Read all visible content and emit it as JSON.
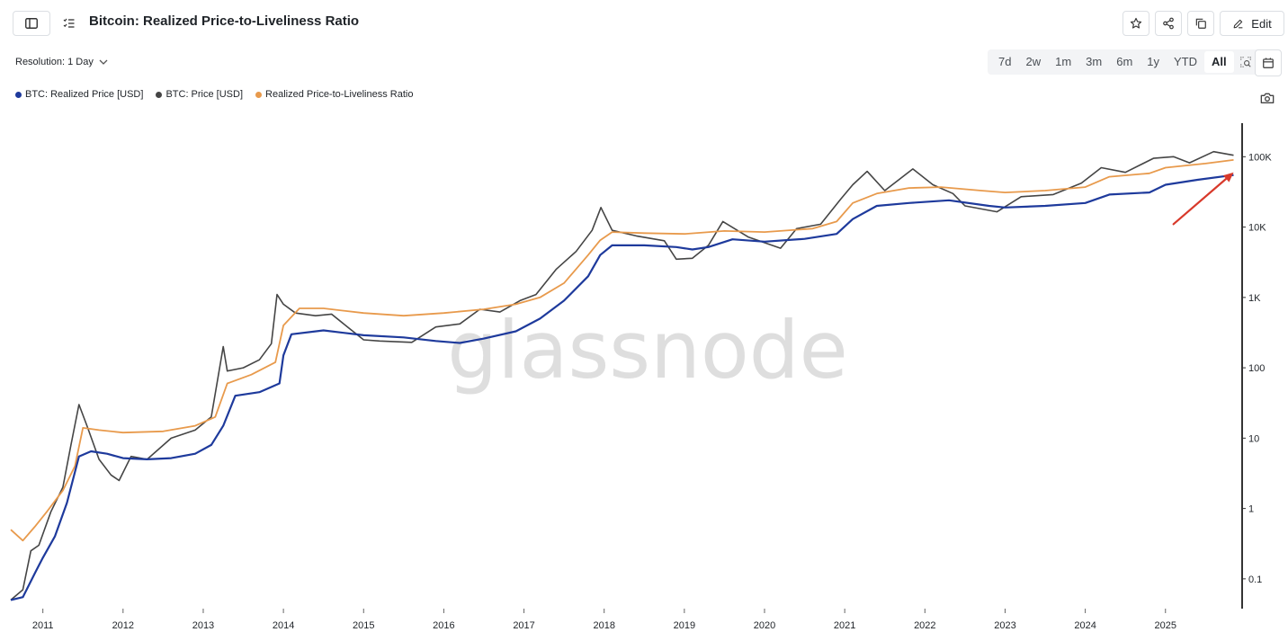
{
  "header": {
    "title": "Bitcoin: Realized Price-to-Liveliness Ratio",
    "edit_label": "Edit"
  },
  "toolbar": {
    "resolution_label": "Resolution: 1 Day",
    "ranges": [
      "7d",
      "2w",
      "1m",
      "3m",
      "6m",
      "1y",
      "YTD",
      "All"
    ],
    "active_range": "All"
  },
  "watermark": "glassnode",
  "colors": {
    "realized": "#1e3a9c",
    "price": "#454545",
    "ratio": "#e89a4c",
    "arrow": "#d8392b"
  },
  "chart_data": {
    "type": "line",
    "yscale": "log",
    "ylim": [
      0.04,
      300000
    ],
    "xlim": [
      2010.6,
      2025.9
    ],
    "x_ticks": [
      "2011",
      "2012",
      "2013",
      "2014",
      "2015",
      "2016",
      "2017",
      "2018",
      "2019",
      "2020",
      "2021",
      "2022",
      "2023",
      "2024",
      "2025"
    ],
    "y_ticks": [
      {
        "label": "100K",
        "value": 100000
      },
      {
        "label": "10K",
        "value": 10000
      },
      {
        "label": "1K",
        "value": 1000
      },
      {
        "label": "100",
        "value": 100
      },
      {
        "label": "10",
        "value": 10
      },
      {
        "label": "1",
        "value": 1
      },
      {
        "label": "0.1",
        "value": 0.1
      }
    ],
    "legend_position": "top-left",
    "series": [
      {
        "name": "BTC: Realized Price [USD]",
        "color": "#1e3a9c",
        "points": [
          [
            2010.6,
            0.05
          ],
          [
            2010.75,
            0.055
          ],
          [
            2010.9,
            0.12
          ],
          [
            2011.0,
            0.2
          ],
          [
            2011.15,
            0.4
          ],
          [
            2011.3,
            1.2
          ],
          [
            2011.45,
            5.5
          ],
          [
            2011.6,
            6.5
          ],
          [
            2011.8,
            6.0
          ],
          [
            2012.0,
            5.2
          ],
          [
            2012.3,
            5.0
          ],
          [
            2012.6,
            5.2
          ],
          [
            2012.9,
            6.0
          ],
          [
            2013.1,
            8.0
          ],
          [
            2013.25,
            15
          ],
          [
            2013.4,
            40
          ],
          [
            2013.7,
            45
          ],
          [
            2013.95,
            60
          ],
          [
            2014.0,
            150
          ],
          [
            2014.1,
            300
          ],
          [
            2014.5,
            340
          ],
          [
            2015.0,
            290
          ],
          [
            2015.5,
            270
          ],
          [
            2015.9,
            240
          ],
          [
            2016.2,
            225
          ],
          [
            2016.5,
            260
          ],
          [
            2016.9,
            330
          ],
          [
            2017.2,
            500
          ],
          [
            2017.5,
            900
          ],
          [
            2017.8,
            2000
          ],
          [
            2017.95,
            4000
          ],
          [
            2018.1,
            5500
          ],
          [
            2018.5,
            5500
          ],
          [
            2018.9,
            5200
          ],
          [
            2019.1,
            4800
          ],
          [
            2019.3,
            5200
          ],
          [
            2019.6,
            6700
          ],
          [
            2020.0,
            6200
          ],
          [
            2020.5,
            6800
          ],
          [
            2020.9,
            8000
          ],
          [
            2021.1,
            13000
          ],
          [
            2021.4,
            20000
          ],
          [
            2021.8,
            22000
          ],
          [
            2022.3,
            24000
          ],
          [
            2022.8,
            20000
          ],
          [
            2023.0,
            19000
          ],
          [
            2023.5,
            20000
          ],
          [
            2024.0,
            22000
          ],
          [
            2024.3,
            29000
          ],
          [
            2024.8,
            31000
          ],
          [
            2025.0,
            40000
          ],
          [
            2025.4,
            47000
          ],
          [
            2025.85,
            55000
          ]
        ]
      },
      {
        "name": "BTC: Price [USD]",
        "color": "#454545",
        "points": [
          [
            2010.6,
            0.05
          ],
          [
            2010.75,
            0.07
          ],
          [
            2010.85,
            0.25
          ],
          [
            2010.95,
            0.3
          ],
          [
            2011.1,
            0.9
          ],
          [
            2011.25,
            2.0
          ],
          [
            2011.35,
            8.0
          ],
          [
            2011.45,
            30
          ],
          [
            2011.55,
            15
          ],
          [
            2011.7,
            5.0
          ],
          [
            2011.85,
            3.0
          ],
          [
            2011.95,
            2.5
          ],
          [
            2012.1,
            5.5
          ],
          [
            2012.3,
            5.0
          ],
          [
            2012.6,
            10
          ],
          [
            2012.9,
            13
          ],
          [
            2013.1,
            20
          ],
          [
            2013.25,
            200
          ],
          [
            2013.3,
            90
          ],
          [
            2013.5,
            100
          ],
          [
            2013.7,
            130
          ],
          [
            2013.85,
            220
          ],
          [
            2013.92,
            1100
          ],
          [
            2014.0,
            800
          ],
          [
            2014.15,
            600
          ],
          [
            2014.4,
            550
          ],
          [
            2014.6,
            580
          ],
          [
            2014.8,
            380
          ],
          [
            2015.0,
            250
          ],
          [
            2015.2,
            240
          ],
          [
            2015.6,
            230
          ],
          [
            2015.9,
            380
          ],
          [
            2016.2,
            420
          ],
          [
            2016.45,
            680
          ],
          [
            2016.7,
            620
          ],
          [
            2016.95,
            900
          ],
          [
            2017.15,
            1100
          ],
          [
            2017.4,
            2500
          ],
          [
            2017.65,
            4500
          ],
          [
            2017.85,
            9000
          ],
          [
            2017.96,
            19000
          ],
          [
            2018.1,
            9000
          ],
          [
            2018.4,
            7500
          ],
          [
            2018.75,
            6400
          ],
          [
            2018.9,
            3500
          ],
          [
            2019.1,
            3600
          ],
          [
            2019.3,
            5500
          ],
          [
            2019.48,
            12000
          ],
          [
            2019.8,
            7200
          ],
          [
            2020.2,
            5000
          ],
          [
            2020.4,
            9500
          ],
          [
            2020.7,
            11000
          ],
          [
            2020.95,
            25000
          ],
          [
            2021.1,
            40000
          ],
          [
            2021.28,
            62000
          ],
          [
            2021.5,
            33000
          ],
          [
            2021.85,
            67000
          ],
          [
            2022.1,
            40000
          ],
          [
            2022.35,
            30000
          ],
          [
            2022.5,
            20000
          ],
          [
            2022.9,
            16500
          ],
          [
            2023.2,
            27000
          ],
          [
            2023.6,
            29000
          ],
          [
            2023.95,
            42000
          ],
          [
            2024.2,
            70000
          ],
          [
            2024.5,
            60000
          ],
          [
            2024.85,
            95000
          ],
          [
            2025.1,
            100000
          ],
          [
            2025.3,
            82000
          ],
          [
            2025.6,
            118000
          ],
          [
            2025.85,
            105000
          ]
        ]
      },
      {
        "name": "Realized Price-to-Liveliness Ratio",
        "color": "#e89a4c",
        "points": [
          [
            2010.6,
            0.5
          ],
          [
            2010.75,
            0.35
          ],
          [
            2010.9,
            0.55
          ],
          [
            2011.05,
            0.9
          ],
          [
            2011.25,
            1.8
          ],
          [
            2011.4,
            4.0
          ],
          [
            2011.5,
            14
          ],
          [
            2011.7,
            13
          ],
          [
            2012.0,
            12
          ],
          [
            2012.5,
            12.5
          ],
          [
            2012.9,
            15
          ],
          [
            2013.15,
            20
          ],
          [
            2013.3,
            60
          ],
          [
            2013.6,
            80
          ],
          [
            2013.9,
            120
          ],
          [
            2014.0,
            400
          ],
          [
            2014.2,
            700
          ],
          [
            2014.5,
            700
          ],
          [
            2015.0,
            600
          ],
          [
            2015.5,
            550
          ],
          [
            2016.0,
            600
          ],
          [
            2016.5,
            680
          ],
          [
            2016.9,
            800
          ],
          [
            2017.2,
            1000
          ],
          [
            2017.5,
            1600
          ],
          [
            2017.8,
            4000
          ],
          [
            2017.95,
            6500
          ],
          [
            2018.1,
            8500
          ],
          [
            2018.5,
            8200
          ],
          [
            2019.0,
            8000
          ],
          [
            2019.5,
            8800
          ],
          [
            2020.0,
            8500
          ],
          [
            2020.6,
            9500
          ],
          [
            2020.9,
            12000
          ],
          [
            2021.1,
            22000
          ],
          [
            2021.4,
            30000
          ],
          [
            2021.8,
            36000
          ],
          [
            2022.2,
            37000
          ],
          [
            2022.7,
            33000
          ],
          [
            2023.0,
            31000
          ],
          [
            2023.5,
            33000
          ],
          [
            2024.0,
            37000
          ],
          [
            2024.3,
            52000
          ],
          [
            2024.8,
            58000
          ],
          [
            2025.0,
            70000
          ],
          [
            2025.5,
            80000
          ],
          [
            2025.85,
            90000
          ]
        ]
      }
    ],
    "annotation": {
      "type": "arrow",
      "from": [
        2025.1,
        11000
      ],
      "to": [
        2025.85,
        60000
      ],
      "color": "#d8392b"
    }
  }
}
